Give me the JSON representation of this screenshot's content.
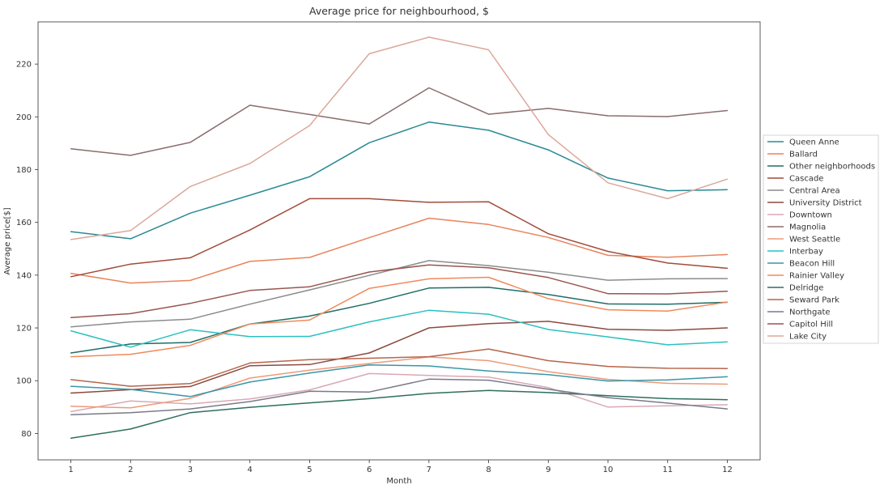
{
  "chart_data": {
    "type": "line",
    "title": "Average price for neighbourhood, $",
    "xlabel": "Month",
    "ylabel": "Average price[$]",
    "x": [
      1,
      2,
      3,
      4,
      5,
      6,
      7,
      8,
      9,
      10,
      11,
      12
    ],
    "xlim": [
      0.45,
      12.55
    ],
    "ylim": [
      70,
      236
    ],
    "yticks": [
      80,
      100,
      120,
      140,
      160,
      180,
      200,
      220
    ],
    "grid": false,
    "legend_position": "right",
    "series": [
      {
        "name": "Queen Anne",
        "color": "#2a8a93",
        "values": [
          156.5,
          153.8,
          163.5,
          170.3,
          177.3,
          190.2,
          198.0,
          194.9,
          187.5,
          176.8,
          172.0,
          172.4
        ]
      },
      {
        "name": "Ballard",
        "color": "#e8845d",
        "values": [
          140.7,
          137.0,
          138.0,
          145.2,
          146.7,
          154.2,
          161.6,
          159.2,
          154.3,
          147.5,
          146.8,
          147.8
        ]
      },
      {
        "name": "Other neighborhoods",
        "color": "#1f6e66",
        "values": [
          110.5,
          113.9,
          114.5,
          121.5,
          124.5,
          129.3,
          135.1,
          135.4,
          132.7,
          129.1,
          129.0,
          129.7
        ]
      },
      {
        "name": "Cascade",
        "color": "#a24c3a",
        "values": [
          139.4,
          144.2,
          146.6,
          157.1,
          169.0,
          169.0,
          167.6,
          167.8,
          155.7,
          149.0,
          144.6,
          142.6
        ]
      },
      {
        "name": "Central Area",
        "color": "#8c8c8c",
        "values": [
          120.4,
          122.3,
          123.3,
          129.0,
          134.4,
          139.9,
          145.5,
          143.6,
          141.1,
          138.1,
          138.6,
          138.7
        ]
      },
      {
        "name": "University District",
        "color": "#8a4a40",
        "values": [
          95.3,
          96.6,
          97.8,
          105.7,
          106.1,
          110.5,
          120.0,
          121.6,
          122.5,
          119.5,
          119.1,
          120.0
        ]
      },
      {
        "name": "Downtown",
        "color": "#d9a8b5",
        "values": [
          88.3,
          92.3,
          91.2,
          93.1,
          96.5,
          102.7,
          102.0,
          101.4,
          97.4,
          90.0,
          90.5,
          90.9
        ]
      },
      {
        "name": "Magnolia",
        "color": "#8a6d6d",
        "values": [
          187.9,
          185.4,
          190.3,
          204.4,
          200.9,
          197.3,
          211.0,
          201.0,
          203.2,
          200.4,
          200.1,
          202.4
        ]
      },
      {
        "name": "West Seattle",
        "color": "#ec9a7a",
        "values": [
          90.3,
          89.7,
          93.3,
          101.0,
          104.0,
          106.5,
          109.0,
          107.6,
          103.4,
          100.5,
          99.0,
          98.7
        ]
      },
      {
        "name": "Interbay",
        "color": "#2cc0c0",
        "values": [
          118.9,
          112.7,
          119.3,
          116.7,
          116.8,
          122.3,
          126.7,
          125.2,
          119.4,
          116.6,
          113.6,
          114.7
        ]
      },
      {
        "name": "Beacon Hill",
        "color": "#3a96a8",
        "values": [
          97.9,
          96.7,
          94.0,
          99.5,
          102.9,
          106.0,
          105.6,
          103.7,
          102.3,
          99.9,
          100.3,
          101.5
        ]
      },
      {
        "name": "Rainier Valley",
        "color": "#f08a5d",
        "values": [
          109.1,
          110.0,
          113.4,
          121.5,
          123.0,
          135.0,
          138.6,
          139.2,
          131.1,
          126.9,
          126.4,
          129.8
        ]
      },
      {
        "name": "Delridge",
        "color": "#2e6e5e",
        "values": [
          78.2,
          81.7,
          87.9,
          89.9,
          91.6,
          93.2,
          95.2,
          96.3,
          95.5,
          94.3,
          93.2,
          92.8
        ]
      },
      {
        "name": "Seward Park",
        "color": "#b6654a",
        "values": [
          100.4,
          97.9,
          98.9,
          106.7,
          108.0,
          108.5,
          109.1,
          112.0,
          107.6,
          105.4,
          104.7,
          104.6
        ]
      },
      {
        "name": "Northgate",
        "color": "#7a7a8a",
        "values": [
          87.1,
          87.9,
          89.3,
          92.1,
          96.0,
          95.7,
          100.6,
          100.2,
          96.8,
          93.6,
          91.5,
          89.3
        ]
      },
      {
        "name": "Capitol Hill",
        "color": "#985550",
        "values": [
          123.9,
          125.4,
          129.3,
          134.2,
          135.6,
          141.2,
          143.9,
          142.8,
          139.1,
          133.0,
          132.9,
          133.9
        ]
      },
      {
        "name": "Lake City",
        "color": "#dba89a",
        "values": [
          153.5,
          156.9,
          173.6,
          182.3,
          196.7,
          223.9,
          230.2,
          225.4,
          193.3,
          175.0,
          169.0,
          176.4
        ]
      }
    ]
  }
}
